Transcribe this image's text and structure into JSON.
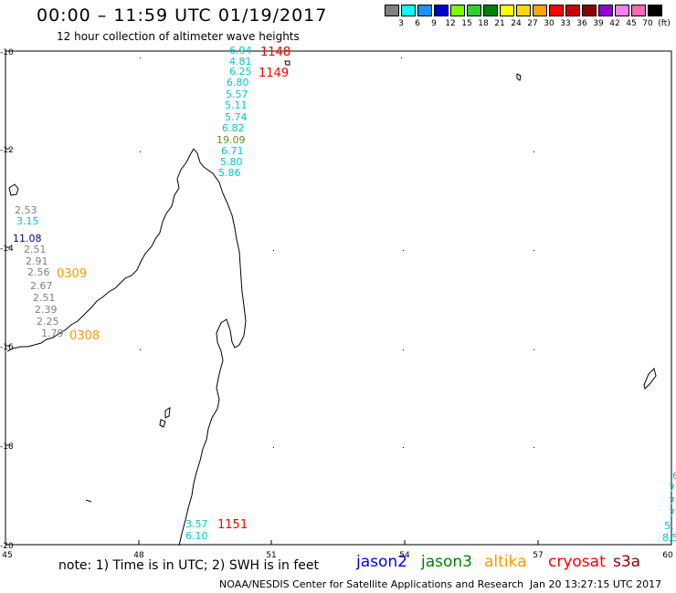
{
  "title": "00:00 – 11:59 UTC 01/19/2017",
  "subtitle": "12 hour collection of altimeter wave heights",
  "color_legend": {
    "labels": [
      "3",
      "6",
      "9",
      "12",
      "15",
      "18",
      "21",
      "24",
      "27",
      "30",
      "33",
      "36",
      "39",
      "42",
      "45",
      "70"
    ],
    "unit": "(ft)",
    "colors": [
      "#808080",
      "#00ffff",
      "#1e90ff",
      "#0000cd",
      "#7cfc00",
      "#32cd32",
      "#008000",
      "#ffff00",
      "#ffd700",
      "#ffa500",
      "#ff0000",
      "#cd0000",
      "#8b0000",
      "#9400d3",
      "#ee82ee",
      "#ff69b4",
      "#000000"
    ]
  },
  "axes": {
    "lat_labels": [
      "-10",
      "-12",
      "-14",
      "-16",
      "-18",
      "-20"
    ],
    "lon_labels": [
      "45",
      "48",
      "51",
      "54",
      "57",
      "60"
    ]
  },
  "observations": [
    {
      "text": "6.94",
      "color": "#00c8c8"
    },
    {
      "text": "4.81",
      "color": "#00c8c8"
    },
    {
      "text": "6.25",
      "color": "#00c8c8"
    },
    {
      "text": "6.80",
      "color": "#00c8c8"
    },
    {
      "text": "5.57",
      "color": "#00c8c8"
    },
    {
      "text": "5.11",
      "color": "#00c8c8"
    },
    {
      "text": "5.74",
      "color": "#00c8c8"
    },
    {
      "text": "6.82",
      "color": "#00c8c8"
    },
    {
      "text": "19.09",
      "color": "#6b8e23"
    },
    {
      "text": "6.71",
      "color": "#00c8c8"
    },
    {
      "text": "5.80",
      "color": "#00c8c8"
    },
    {
      "text": "5.86",
      "color": "#00c8c8"
    },
    {
      "text": "2.53",
      "color": "#808080"
    },
    {
      "text": "3.15",
      "color": "#00c8c8"
    },
    {
      "text": "11.08",
      "color": "#00008b"
    },
    {
      "text": "2.51",
      "color": "#808080"
    },
    {
      "text": "2.91",
      "color": "#808080"
    },
    {
      "text": "2.56",
      "color": "#808080"
    },
    {
      "text": "2.67",
      "color": "#808080"
    },
    {
      "text": "2.51",
      "color": "#808080"
    },
    {
      "text": "2.39",
      "color": "#808080"
    },
    {
      "text": "2.25",
      "color": "#808080"
    },
    {
      "text": "1.79",
      "color": "#808080"
    },
    {
      "text": "3.57",
      "color": "#00c8c8"
    },
    {
      "text": "6.10",
      "color": "#00c8c8"
    },
    {
      "text": "6",
      "color": "#00c8c8"
    },
    {
      "text": "7.",
      "color": "#00c8c8"
    },
    {
      "text": "7.",
      "color": "#00c8c8"
    },
    {
      "text": "7.",
      "color": "#00c8c8"
    },
    {
      "text": "5.",
      "color": "#00c8c8"
    },
    {
      "text": "8.5",
      "color": "#00c8c8"
    }
  ],
  "time_labels": [
    {
      "text": "1148",
      "color": "#ff0000"
    },
    {
      "text": "1149",
      "color": "#ff0000"
    },
    {
      "text": "0309",
      "color": "#ff9900"
    },
    {
      "text": "0308",
      "color": "#ff9900"
    },
    {
      "text": "1151",
      "color": "#ff0000"
    }
  ],
  "footer": {
    "note": "note:  1) Time is in UTC;  2) SWH is in feet",
    "satellites": [
      {
        "name": "jason2",
        "color": "#0000ff"
      },
      {
        "name": "jason3",
        "color": "#008000"
      },
      {
        "name": "altika",
        "color": "#ff9900"
      },
      {
        "name": "cryosat",
        "color": "#ff0000"
      },
      {
        "name": "s3a",
        "color": "#8b0000"
      }
    ],
    "credit": "NOAA/NESDIS Center for Satellite Applications and Research",
    "timestamp": "Jan 20 13:27:15 UTC 2017"
  }
}
